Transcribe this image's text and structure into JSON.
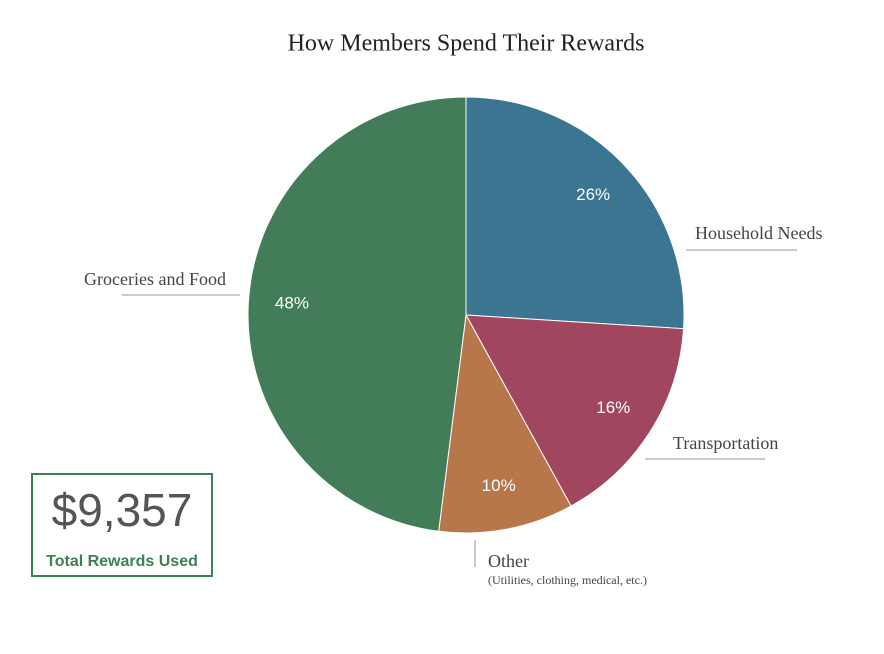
{
  "chart_data": {
    "type": "pie",
    "title": "How Members Spend Their Rewards",
    "categories": [
      "Household Needs",
      "Transportation",
      "Other",
      "Groceries and Food"
    ],
    "values": [
      26,
      16,
      10,
      48
    ],
    "value_labels": [
      "26%",
      "16%",
      "10%",
      "48%"
    ],
    "colors": [
      "#3c7592",
      "#a0475f",
      "#b8774a",
      "#437c58"
    ],
    "annotations": [
      "(Utilities, clothing, medical, etc.)",
      "$9,357",
      "Total Rewards Used"
    ]
  }
}
